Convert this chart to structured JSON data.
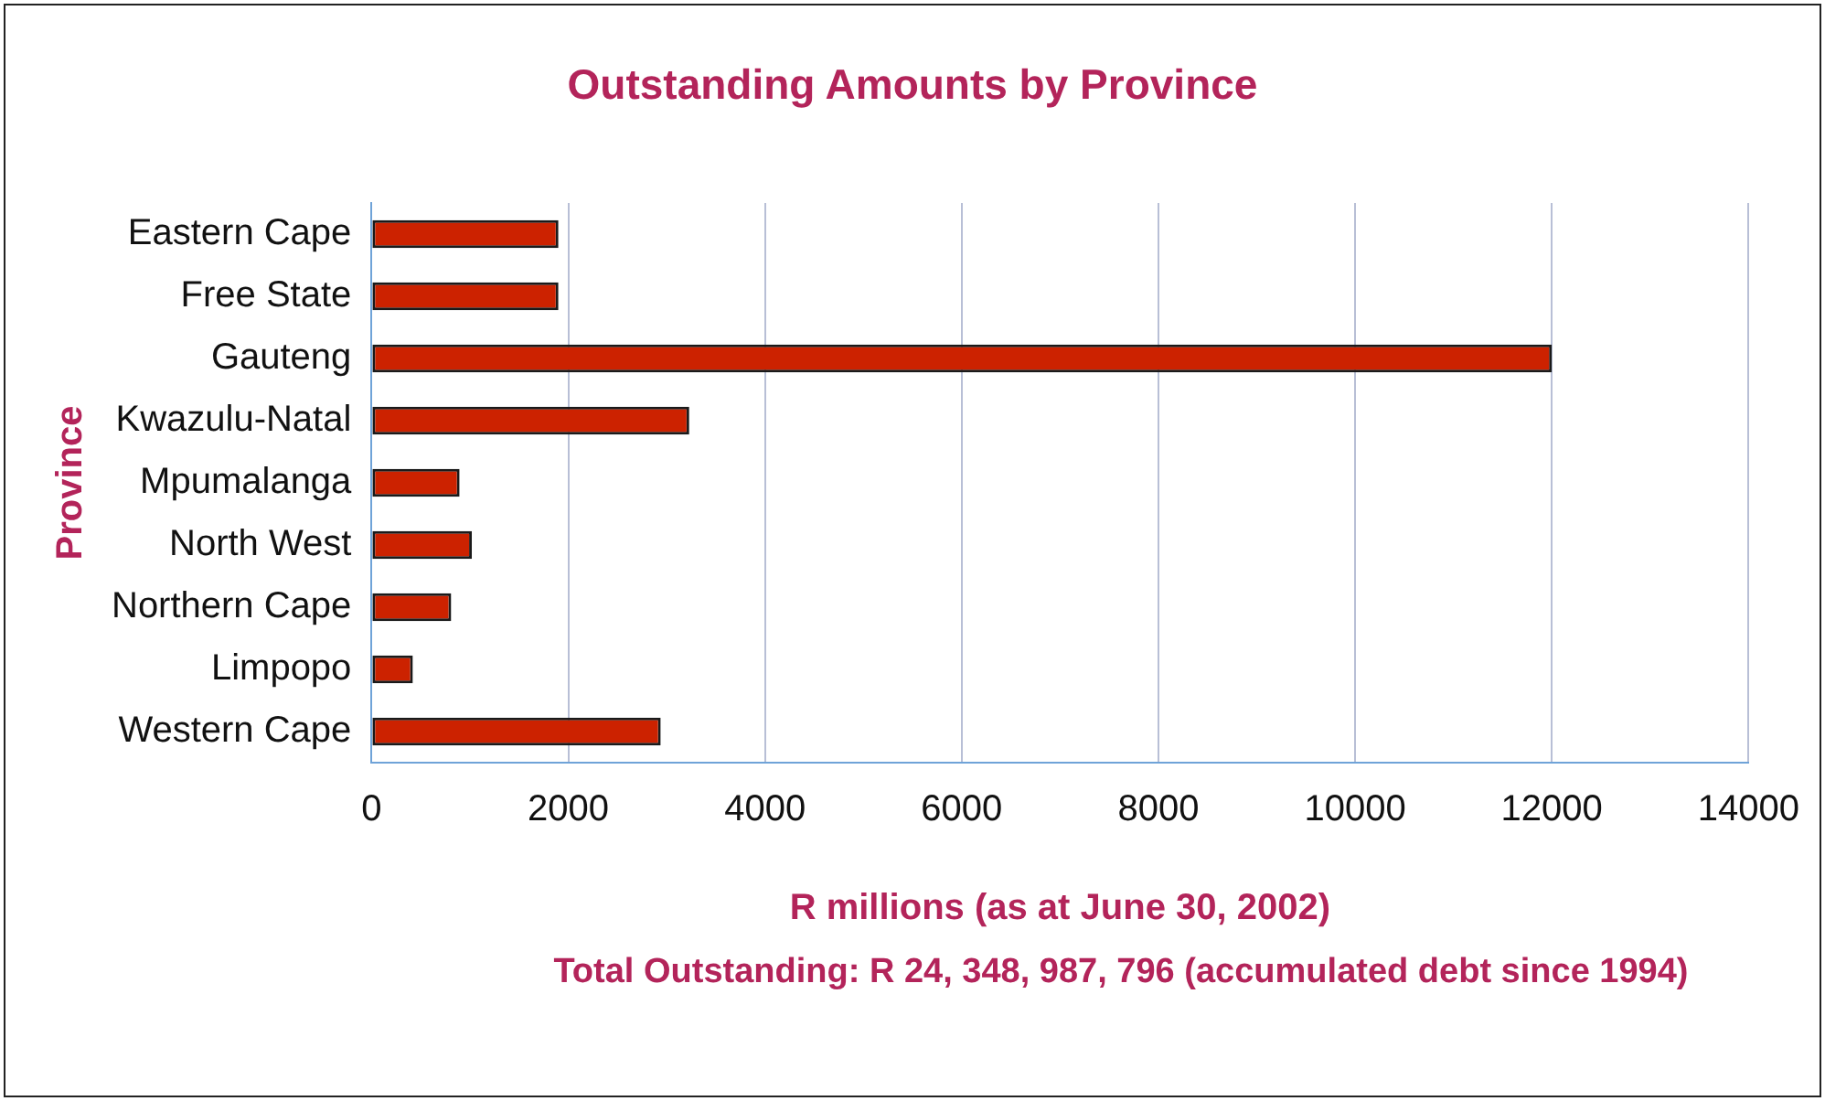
{
  "chart_data": {
    "type": "bar",
    "orientation": "horizontal",
    "title": "Outstanding Amounts by Province",
    "xlabel": "R millions (as at June 30, 2002)",
    "ylabel": "Province",
    "categories": [
      "Eastern Cape",
      "Free State",
      "Gauteng",
      "Kwazulu-Natal",
      "Mpumalanga",
      "North West",
      "Northern Cape",
      "Limpopo",
      "Western Cape"
    ],
    "values": [
      1900,
      1900,
      12000,
      3230,
      895,
      1020,
      810,
      420,
      2940
    ],
    "color": "#cc2200",
    "xlim": [
      0,
      14000
    ],
    "xticks": [
      0,
      2000,
      4000,
      6000,
      8000,
      10000,
      12000,
      14000
    ],
    "grid": "x",
    "legend": false,
    "annotations": [
      "Total Outstanding: R 24, 348, 987, 796 (accumulated debt since 1994)"
    ]
  }
}
